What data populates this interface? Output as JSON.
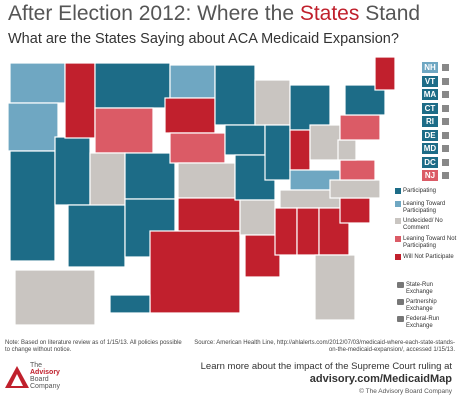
{
  "header": {
    "title_parts": [
      "After Election 2012: Where the ",
      "States",
      " Stand"
    ],
    "subtitle": "What are the States Saying about ACA Medicaid Expansion?"
  },
  "small_states": [
    "NH",
    "VT",
    "MA",
    "CT",
    "RI",
    "DE",
    "MD",
    "DC",
    "NJ"
  ],
  "legend": {
    "status": [
      "Participating",
      "Leaning Toward Participating",
      "Undecided/ No Comment",
      "Leaning Toward Not Participating",
      "Will Not Participate"
    ],
    "exchange": [
      "State-Run Exchange",
      "Partnership Exchange",
      "Federal-Run Exchange"
    ]
  },
  "note": "Note: Based on literature review as of 1/15/13. All policies possible to change without notice.",
  "source": "Source: American Health Line, http://ahlalerts.com/2012/07/03/medicaid-where-each-state-stands-on-the-medicaid-expansion/, accessed 1/15/13.",
  "footer": {
    "logo": [
      "The",
      "Advisory",
      "Board",
      "Company"
    ],
    "cta": "Learn more about the impact of the Supreme Court ruling at",
    "link": "advisory.com/MedicaidMap",
    "copyright": "© The Advisory Board Company"
  }
}
